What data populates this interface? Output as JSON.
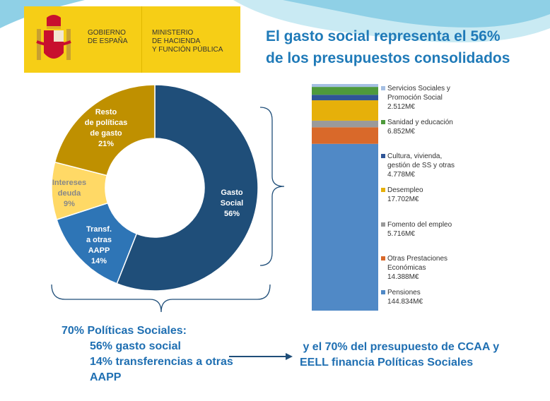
{
  "logo": {
    "gov": [
      "GOBIERNO",
      "DE ESPAÑA"
    ],
    "ministry": [
      "MINISTERIO",
      "DE HACIENDA",
      "Y FUNCIÓN PÚBLICA"
    ]
  },
  "title": [
    "El gasto social representa el 56%",
    "de los presupuestos consolidados"
  ],
  "chart_data": [
    {
      "type": "pie",
      "donut": true,
      "slices": [
        {
          "label": "Gasto Social",
          "value": 56,
          "color": "#1f4e79",
          "lines": [
            "Gasto",
            "Social",
            "56%"
          ]
        },
        {
          "label": "Transf. a otras AAPP",
          "value": 14,
          "color": "#2e75b6",
          "lines": [
            "Transf.",
            "a otras",
            "AAPP",
            "14%"
          ]
        },
        {
          "label": "Intereses deuda",
          "value": 9,
          "color": "#ffd966",
          "lines": [
            "Intereses",
            "deuda",
            "9%"
          ]
        },
        {
          "label": "Resto de políticas de gasto",
          "value": 21,
          "color": "#bf9000",
          "lines": [
            "Resto",
            "de políticas",
            "de gasto",
            "21%"
          ]
        }
      ]
    },
    {
      "type": "bar",
      "stacked": true,
      "unit": "M€",
      "series": [
        {
          "name": "Pensiones",
          "value": 144834,
          "display": "144.834M€",
          "color": "#5089c6"
        },
        {
          "name": "Otras Prestaciones Económicas",
          "value": 14388,
          "display": "14.388M€",
          "color": "#d9692a"
        },
        {
          "name": "Fomento del empleo",
          "value": 5716,
          "display": "5.716M€",
          "color": "#9a9a9a"
        },
        {
          "name": "Desempleo",
          "value": 17702,
          "display": "17.702M€",
          "color": "#e6b00a"
        },
        {
          "name": "Cultura, vivienda, gestión de SS y otras",
          "value": 4778,
          "display": "4.778M€",
          "color": "#2f5597"
        },
        {
          "name": "Sanidad y educación",
          "value": 6852,
          "display": "6.852M€",
          "color": "#4e9a3c"
        },
        {
          "name": "Servicios Sociales y Promoción Social",
          "value": 2512,
          "display": "2.512M€",
          "color": "#a5bfe3"
        }
      ]
    }
  ],
  "legend_lines": [
    [
      "Servicios Sociales y",
      "Promoción Social",
      "2.512M€"
    ],
    [
      "Sanidad y educación",
      "6.852M€"
    ],
    [
      "Cultura, vivienda,",
      "gestión de SS y otras",
      "4.778M€"
    ],
    [
      "Desempleo",
      "17.702M€"
    ],
    [
      "Fomento del empleo",
      "5.716M€"
    ],
    [
      "Otras Prestaciones",
      "Económicas",
      "14.388M€"
    ],
    [
      "Pensiones",
      "144.834M€"
    ]
  ],
  "bottom": {
    "left": [
      "70% Políticas Sociales:",
      "56% gasto social",
      "14% transferencias a otras",
      "AAPP"
    ],
    "right": [
      " y el 70% del presupuesto de CCAA y",
      "EELL financia Políticas Sociales"
    ]
  }
}
